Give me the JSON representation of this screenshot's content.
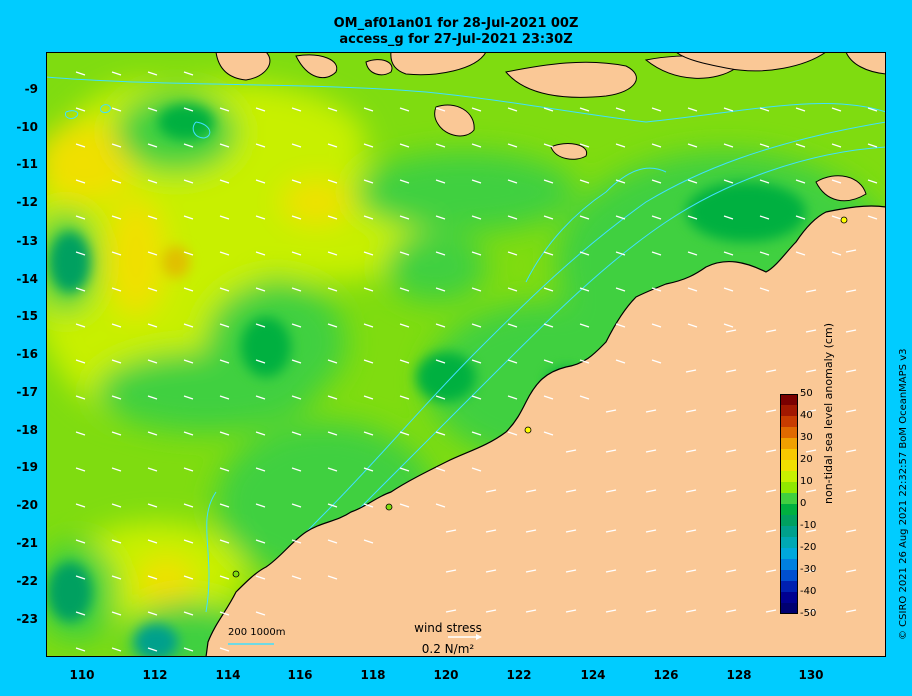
{
  "title_line1": "OM_af01an01 for 28-Jul-2021 00Z",
  "title_line2": "access_g for 27-Jul-2021 23:30Z",
  "y_ticks": [
    "-9",
    "-10",
    "-11",
    "-12",
    "-13",
    "-14",
    "-15",
    "-16",
    "-17",
    "-18",
    "-19",
    "-20",
    "-21",
    "-22",
    "-23"
  ],
  "x_ticks": [
    "110",
    "112",
    "114",
    "116",
    "118",
    "120",
    "122",
    "124",
    "126",
    "128",
    "130"
  ],
  "colorbar": {
    "title": "non-tidal sea level anomaly (cm)",
    "ticks": [
      "50",
      "40",
      "30",
      "20",
      "10",
      "0",
      "-10",
      "-20",
      "-30",
      "-40",
      "-50"
    ],
    "colors": [
      "#7a0000",
      "#a21800",
      "#c83c00",
      "#e06a00",
      "#f0a000",
      "#f8c800",
      "#f0e000",
      "#c8f000",
      "#90e800",
      "#40d040",
      "#00b040",
      "#00a060",
      "#00a08c",
      "#00a8b4",
      "#00a8dc",
      "#0080e0",
      "#0050d0",
      "#0020b0",
      "#000090",
      "#000070"
    ]
  },
  "wind_legend": {
    "title": "wind stress",
    "value": "0.2 N/m²"
  },
  "scale_bar": "200  1000m",
  "credit": "© CSIRO 2021  26 Aug 2021 22:32:57 BoM OceanMAPS v3",
  "colors": {
    "background": "#00ccff",
    "land": "#fac896",
    "sea_base": "#7fdc10",
    "contour": "#40e0ff"
  }
}
